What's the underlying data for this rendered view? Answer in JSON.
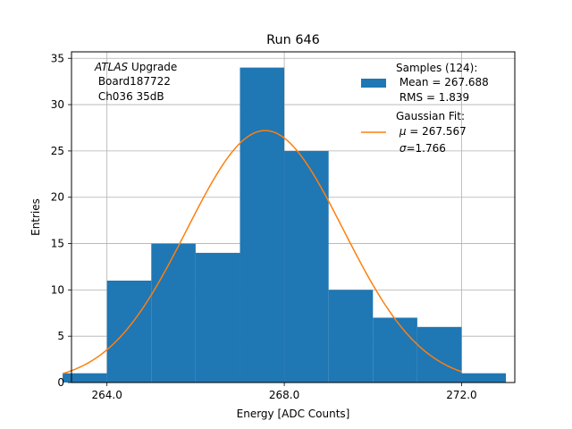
{
  "chart_data": {
    "type": "bar",
    "title": "Run 646",
    "xlabel": "Energy [ADC Counts]",
    "ylabel": "Entries",
    "xlim": [
      263.2,
      273.2
    ],
    "ylim": [
      0,
      35.7
    ],
    "xticks": [
      264.0,
      268.0,
      272.0
    ],
    "xtick_labels": [
      "264.0",
      "268.0",
      "272.0"
    ],
    "yticks": [
      0,
      5,
      10,
      15,
      20,
      25,
      30,
      35
    ],
    "ytick_labels": [
      "0",
      "5",
      "10",
      "15",
      "20",
      "25",
      "30",
      "35"
    ],
    "grid": true,
    "bar_color": "#1f77b4",
    "fit_color": "#ff7f0e",
    "histogram": {
      "bin_edges": [
        263.0,
        264.0,
        265.0,
        266.0,
        267.0,
        268.0,
        269.0,
        270.0,
        271.0,
        272.0,
        273.0
      ],
      "values": [
        1,
        11,
        15,
        14,
        34,
        25,
        10,
        7,
        6,
        1
      ]
    },
    "fit": {
      "mu": 267.567,
      "sigma": 1.766,
      "amplitude": 27.2,
      "x_range": [
        263.0,
        272.0
      ]
    },
    "annotation": {
      "line1_italic": "ATLAS",
      "line1_rest": " Upgrade",
      "line2": " Board187722",
      "line3": " Ch036 35dB"
    },
    "legend": {
      "position": "top-right",
      "samples_line1": "Samples (124):",
      "samples_line2": " Mean = 267.688",
      "samples_line3": " RMS = 1.839",
      "fit_line1": "Gaussian Fit:",
      "fit_line2_symbol": "μ",
      "fit_line2_rest": " = 267.567",
      "fit_line3_symbol": "σ",
      "fit_line3_rest": "=1.766"
    }
  }
}
